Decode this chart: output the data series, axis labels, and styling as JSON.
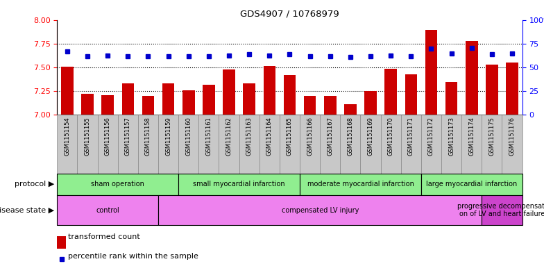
{
  "title": "GDS4907 / 10768979",
  "samples": [
    "GSM1151154",
    "GSM1151155",
    "GSM1151156",
    "GSM1151157",
    "GSM1151158",
    "GSM1151159",
    "GSM1151160",
    "GSM1151161",
    "GSM1151162",
    "GSM1151163",
    "GSM1151164",
    "GSM1151165",
    "GSM1151166",
    "GSM1151167",
    "GSM1151168",
    "GSM1151169",
    "GSM1151170",
    "GSM1151171",
    "GSM1151172",
    "GSM1151173",
    "GSM1151174",
    "GSM1151175",
    "GSM1151176"
  ],
  "bar_values": [
    7.51,
    7.22,
    7.21,
    7.33,
    7.2,
    7.33,
    7.26,
    7.32,
    7.48,
    7.33,
    7.52,
    7.42,
    7.2,
    7.2,
    7.11,
    7.25,
    7.49,
    7.43,
    7.9,
    7.35,
    7.78,
    7.53,
    7.55
  ],
  "dot_values": [
    67,
    62,
    63,
    62,
    62,
    62,
    62,
    62,
    63,
    64,
    63,
    64,
    62,
    62,
    61,
    62,
    63,
    62,
    70,
    65,
    71,
    64,
    65
  ],
  "ylim_left": [
    7.0,
    8.0
  ],
  "ylim_right": [
    0,
    100
  ],
  "yticks_left": [
    7.0,
    7.25,
    7.5,
    7.75,
    8.0
  ],
  "yticks_right": [
    0,
    25,
    50,
    75,
    100
  ],
  "bar_color": "#cc0000",
  "dot_color": "#0000cc",
  "bar_bottom": 7.0,
  "grid_values": [
    7.25,
    7.5,
    7.75
  ],
  "protocol_groups": [
    {
      "label": "sham operation",
      "start": 0,
      "end": 5
    },
    {
      "label": "small myocardial infarction",
      "start": 6,
      "end": 11
    },
    {
      "label": "moderate myocardial infarction",
      "start": 12,
      "end": 17
    },
    {
      "label": "large myocardial infarction",
      "start": 18,
      "end": 22
    }
  ],
  "disease_groups": [
    {
      "label": "control",
      "start": 0,
      "end": 4
    },
    {
      "label": "compensated LV injury",
      "start": 5,
      "end": 20
    },
    {
      "label": "progressive decompensati\non of LV and heart failure",
      "start": 21,
      "end": 22
    }
  ],
  "proto_color": "#90ee90",
  "dis_color_main": "#ee82ee",
  "dis_color_last": "#cc44cc",
  "legend_bar_label": "transformed count",
  "legend_dot_label": "percentile rank within the sample",
  "protocol_label": "protocol",
  "disease_label": "disease state",
  "xtick_bg": "#c8c8c8",
  "xtick_border": "#888888"
}
